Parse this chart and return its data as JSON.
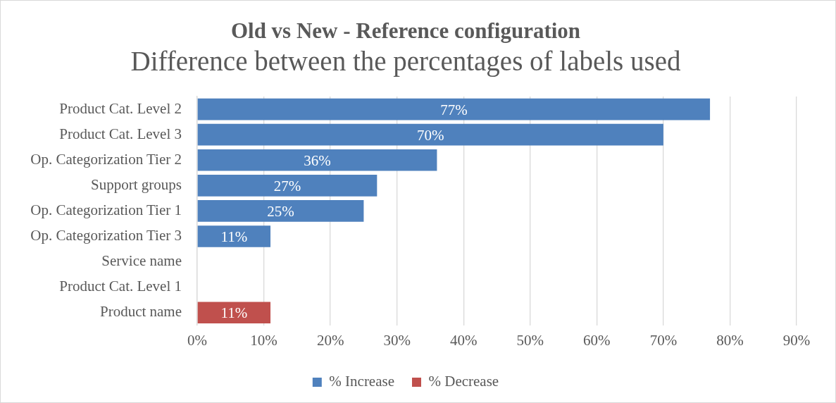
{
  "chart_data": {
    "type": "bar",
    "orientation": "horizontal",
    "title": "Old vs New - Reference configuration",
    "subtitle": "Difference between the percentages of labels used",
    "categories": [
      "Product Cat. Level 2",
      "Product Cat. Level 3",
      "Op. Categorization Tier 2",
      "Support groups",
      "Op. Categorization Tier 1",
      "Op. Categorization Tier 3",
      "Service name",
      "Product Cat. Level 1",
      "Product name"
    ],
    "series": [
      {
        "name": "% Increase",
        "color": "#4f81bd",
        "values": [
          77,
          70,
          36,
          27,
          25,
          11,
          0,
          0,
          null
        ],
        "value_labels": [
          "77%",
          "70%",
          "36%",
          "27%",
          "25%",
          "11%",
          null,
          null,
          null
        ]
      },
      {
        "name": "% Decrease",
        "color": "#c0504d",
        "values": [
          null,
          null,
          null,
          null,
          null,
          null,
          null,
          null,
          11
        ],
        "value_labels": [
          null,
          null,
          null,
          null,
          null,
          null,
          null,
          null,
          "11%"
        ]
      }
    ],
    "xlim": [
      0,
      90
    ],
    "xticks": [
      {
        "value": 0,
        "label": "0%"
      },
      {
        "value": 10,
        "label": "10%"
      },
      {
        "value": 20,
        "label": "20%"
      },
      {
        "value": 30,
        "label": "30%"
      },
      {
        "value": 40,
        "label": "40%"
      },
      {
        "value": 50,
        "label": "50%"
      },
      {
        "value": 60,
        "label": "60%"
      },
      {
        "value": 70,
        "label": "70%"
      },
      {
        "value": 80,
        "label": "80%"
      },
      {
        "value": 90,
        "label": "90%"
      }
    ],
    "grid": "x",
    "legend": "bottom"
  }
}
